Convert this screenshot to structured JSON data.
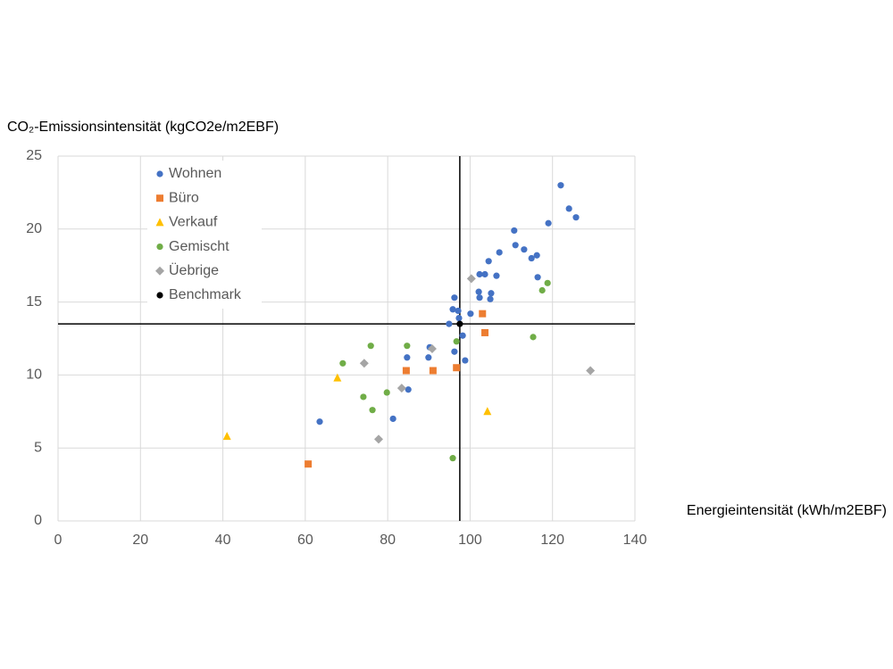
{
  "chart_data": {
    "type": "scatter",
    "y_label": "CO₂-Emissionsintensität (kgCO2e/m2EBF)",
    "x_label": "Energieintensität (kWh/m2EBF)",
    "xlim": [
      0,
      140
    ],
    "xticks": [
      0,
      20,
      40,
      60,
      80,
      100,
      120,
      140
    ],
    "ylim": [
      0,
      25
    ],
    "yticks": [
      0,
      5,
      10,
      15,
      20,
      25
    ],
    "grid": true,
    "legend": "upper-left",
    "benchmark_x": 97.5,
    "benchmark_y": 13.5,
    "series": [
      {
        "name": "Wohnen",
        "color": "#4472c4",
        "marker": "circle",
        "x": [
          122.0,
          124.0,
          125.7,
          119.0,
          110.7,
          111.0,
          113.1,
          114.9,
          116.2,
          107.1,
          104.5,
          102.3,
          103.6,
          106.4,
          116.4,
          102.1,
          105.1,
          102.3,
          104.9,
          96.2,
          95.8,
          97.1,
          100.1,
          97.3,
          94.9,
          98.2,
          90.2,
          96.2,
          84.7,
          89.9,
          98.8,
          85.0,
          81.3,
          63.5
        ],
        "values": [
          23.0,
          21.4,
          20.8,
          20.4,
          19.9,
          18.9,
          18.6,
          18.0,
          18.2,
          18.4,
          17.8,
          16.9,
          16.9,
          16.8,
          16.7,
          15.7,
          15.6,
          15.3,
          15.2,
          15.3,
          14.5,
          14.4,
          14.2,
          13.9,
          13.5,
          12.7,
          11.9,
          11.6,
          11.2,
          11.2,
          11.0,
          9.0,
          7.0,
          6.8
        ]
      },
      {
        "name": "Büro",
        "color": "#ed7d31",
        "marker": "square",
        "x": [
          103.0,
          103.6,
          84.5,
          91.0,
          96.7,
          60.7
        ],
        "values": [
          14.2,
          12.9,
          10.3,
          10.3,
          10.5,
          3.9
        ]
      },
      {
        "name": "Verkauf",
        "color": "#ffc000",
        "marker": "triangle",
        "x": [
          41.0,
          67.8,
          104.2
        ],
        "values": [
          5.8,
          9.8,
          7.5
        ]
      },
      {
        "name": "Gemischt",
        "color": "#70ad47",
        "marker": "circle",
        "x": [
          75.9,
          84.7,
          69.1,
          96.7,
          118.8,
          117.5,
          115.3,
          74.1,
          79.8,
          76.3,
          95.8
        ],
        "values": [
          12.0,
          12.0,
          10.8,
          12.3,
          16.3,
          15.8,
          12.6,
          8.5,
          8.8,
          7.6,
          4.3
        ]
      },
      {
        "name": "Üebrige",
        "color": "#a5a5a5",
        "marker": "diamond",
        "x": [
          100.3,
          74.3,
          90.8,
          83.4,
          77.8,
          129.2
        ],
        "values": [
          16.6,
          10.8,
          11.8,
          9.1,
          5.6,
          10.3
        ]
      },
      {
        "name": "Benchmark",
        "color": "#000000",
        "marker": "circle",
        "x": [
          97.5
        ],
        "values": [
          13.5
        ]
      }
    ]
  }
}
